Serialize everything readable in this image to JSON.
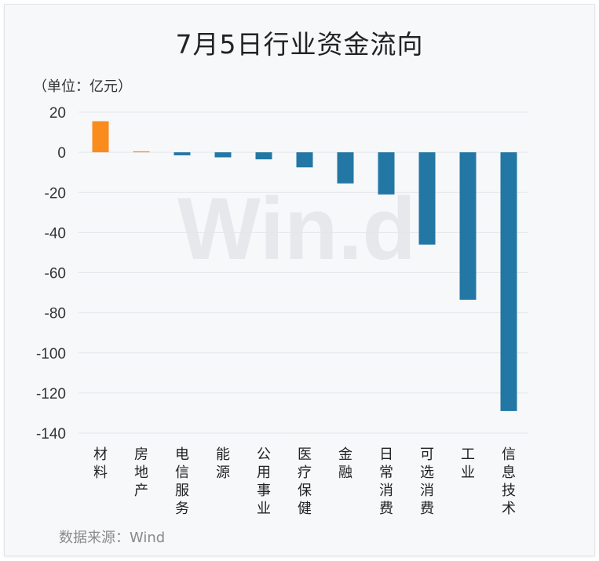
{
  "chart_data": {
    "type": "bar",
    "title": "7月5日行业资金流向",
    "unit_label": "（单位：亿元）",
    "source_label": "数据来源：Wind",
    "watermark": "Win.d",
    "categories": [
      "材料",
      "房地产",
      "电信服务",
      "能源",
      "公用事业",
      "医疗保健",
      "金融",
      "日常消费",
      "可选消费",
      "工业",
      "信息技术"
    ],
    "values": [
      15.5,
      0.5,
      -1.5,
      -2.5,
      -3.5,
      -7.5,
      -15.5,
      -21.0,
      -46.0,
      -73.5,
      -129.0
    ],
    "ylim": [
      -140,
      20
    ],
    "yticks": [
      20,
      0,
      -20,
      -40,
      -60,
      -80,
      -100,
      -120,
      -140
    ],
    "grid": true,
    "colors": {
      "positive": "#f98c1d",
      "negative": "#2277a4",
      "grid": "#e4e6ea"
    }
  }
}
